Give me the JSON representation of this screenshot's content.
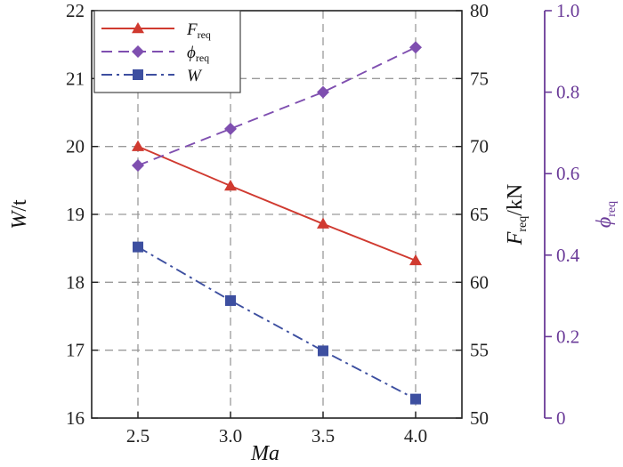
{
  "chart_data": {
    "type": "line",
    "x": [
      2.5,
      3.0,
      3.5,
      4.0
    ],
    "xlabel": "Ma",
    "xlim": [
      2.25,
      4.25
    ],
    "xticks": [
      "2.5",
      "3.0",
      "3.5",
      "4.0"
    ],
    "axes": {
      "left": {
        "label_main": "W",
        "label_unit": "/t",
        "lim": [
          16,
          22
        ],
        "ticks": [
          "16",
          "17",
          "18",
          "19",
          "20",
          "21",
          "22"
        ]
      },
      "right": {
        "label_main": "F",
        "label_sub": "req",
        "label_unit": "/kN",
        "lim": [
          50,
          80
        ],
        "ticks": [
          "50",
          "55",
          "60",
          "65",
          "70",
          "75",
          "80"
        ]
      },
      "right2": {
        "label_main": "ϕ",
        "label_sub": "req",
        "lim": [
          0,
          1
        ],
        "ticks": [
          "0",
          "0.2",
          "0.4",
          "0.6",
          "0.8",
          "1.0"
        ],
        "color": "#6a3a98"
      }
    },
    "grid": true,
    "legend_position": "top-left",
    "series": [
      {
        "name": "F",
        "name_sub": "req",
        "axis": "right",
        "values": [
          70.0,
          67.1,
          64.3,
          61.6
        ],
        "color": "#d03a30",
        "marker": "triangle",
        "line_style": "solid"
      },
      {
        "name": "ϕ",
        "name_sub": "req",
        "axis": "right2",
        "values": [
          0.62,
          0.71,
          0.8,
          0.91
        ],
        "color": "#7f4fb0",
        "marker": "diamond",
        "line_style": "dashed"
      },
      {
        "name": "W",
        "name_sub": "",
        "axis": "left",
        "values": [
          18.52,
          17.73,
          16.99,
          16.28
        ],
        "color": "#3d4fa0",
        "marker": "square",
        "line_style": "dashdot"
      }
    ]
  }
}
